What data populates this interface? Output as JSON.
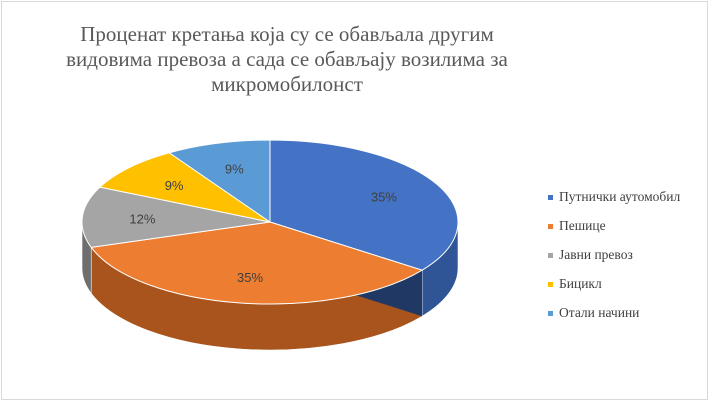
{
  "chart_data": {
    "type": "pie",
    "title_lines": [
      "Проценат кретања која су се обављала другим",
      "видовима превоза а сада се обављају возилима за",
      "микромобилонст"
    ],
    "slices": [
      {
        "label": "Путнички аутомобил",
        "value": 35,
        "display": "35%",
        "color": "#4472c4",
        "side": "#2f5597"
      },
      {
        "label": "Пешице",
        "value": 35,
        "display": "35%",
        "color": "#ed7d31",
        "side": "#a8541c"
      },
      {
        "label": "Јавни превоз",
        "value": 12,
        "display": "12%",
        "color": "#a5a5a5",
        "side": "#6e6e6e"
      },
      {
        "label": "Бицикл",
        "value": 9,
        "display": "9%",
        "color": "#ffc000",
        "side": "#b38600"
      },
      {
        "label": "Отали начини",
        "value": 9,
        "display": "9%",
        "color": "#5b9bd5",
        "side": "#3a6f9e"
      }
    ],
    "legend_position": "right",
    "style": "3d-pie"
  }
}
